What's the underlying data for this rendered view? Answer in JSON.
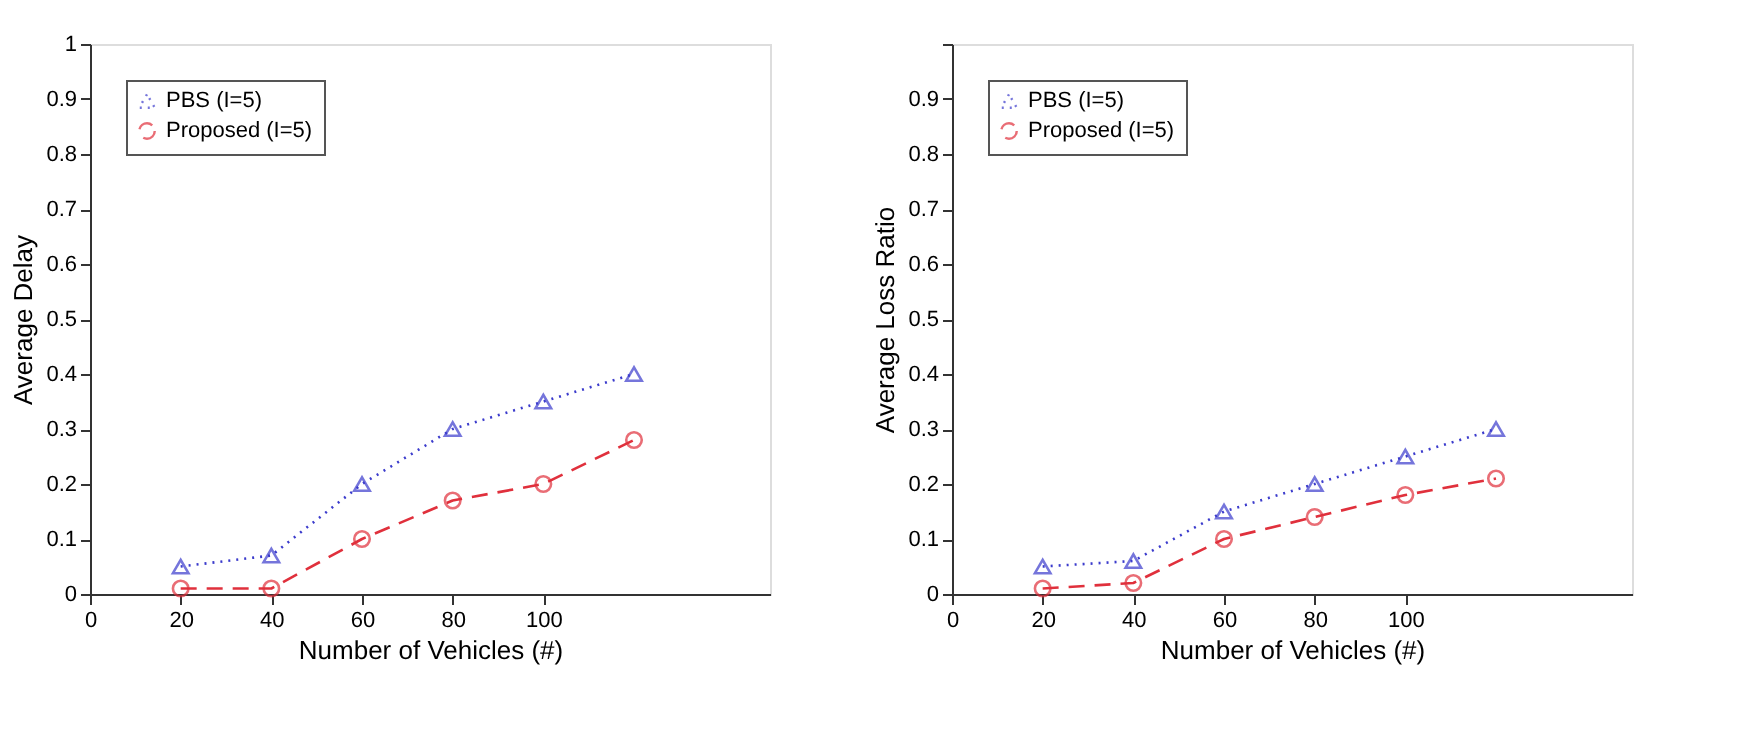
{
  "chart_data": [
    {
      "type": "line",
      "xlabel": "Number of Vehicles (#)",
      "ylabel": "Average Delay",
      "x": [
        20,
        40,
        60,
        80,
        100,
        120
      ],
      "xlim": [
        0,
        150
      ],
      "xticks": [
        0,
        20,
        40,
        60,
        80,
        100
      ],
      "ylim": [
        0,
        1
      ],
      "yticks": [
        0,
        0.1,
        0.2,
        0.3,
        0.4,
        0.5,
        0.6,
        0.7,
        0.8,
        0.9,
        1
      ],
      "grid": false,
      "legend": "top left",
      "series": [
        {
          "name": "PBS (I=5)",
          "color": "#3b3bcc",
          "values": [
            0.05,
            0.07,
            0.2,
            0.3,
            0.35,
            0.4
          ],
          "marker": "triangle",
          "line_style": "dotted"
        },
        {
          "name": "Proposed (I=5)",
          "color": "#e0303c",
          "values": [
            0.01,
            0.01,
            0.1,
            0.17,
            0.2,
            0.28
          ],
          "marker": "circle",
          "line_style": "dashed"
        }
      ]
    },
    {
      "type": "line",
      "xlabel": "Number of Vehicles (#)",
      "ylabel": "Average Loss Ratio",
      "x": [
        20,
        40,
        60,
        80,
        100,
        120
      ],
      "xlim": [
        0,
        150
      ],
      "xticks": [
        0,
        20,
        40,
        60,
        80,
        100
      ],
      "ylim": [
        0,
        1
      ],
      "yticks": [
        0,
        0.1,
        0.2,
        0.3,
        0.4,
        0.5,
        0.6,
        0.7,
        0.8,
        0.9,
        {
          "value": 1,
          "label": null
        }
      ],
      "grid": false,
      "legend": "top left",
      "series": [
        {
          "name": "PBS (I=5)",
          "color": "#3b3bcc",
          "values": [
            0.05,
            0.06,
            0.15,
            0.2,
            0.25,
            0.3
          ],
          "marker": "triangle",
          "line_style": "dotted"
        },
        {
          "name": "Proposed (I=5)",
          "color": "#e0303c",
          "values": [
            0.01,
            0.02,
            0.1,
            0.14,
            0.18,
            0.21
          ],
          "marker": "circle",
          "line_style": "dashed"
        }
      ]
    }
  ]
}
